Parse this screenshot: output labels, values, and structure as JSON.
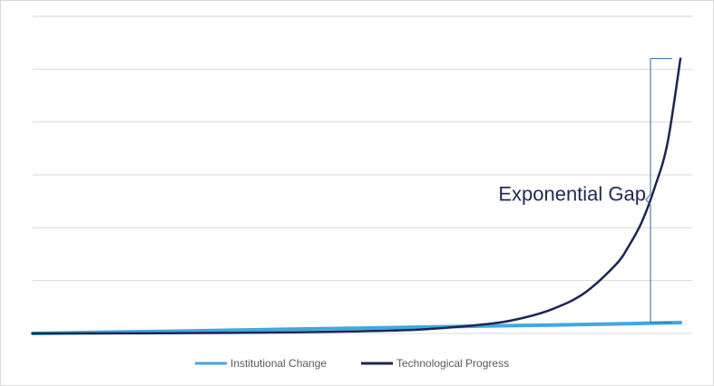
{
  "chart_data": {
    "type": "line",
    "title": "",
    "xlabel": "",
    "ylabel": "",
    "x": [
      0,
      10,
      20,
      30,
      40,
      50,
      60,
      70,
      75,
      80,
      85,
      90,
      92,
      94,
      96,
      98,
      100
    ],
    "ylim": [
      0,
      100
    ],
    "grid": true,
    "legend_position": "bottom",
    "series": [
      {
        "name": "Institutional Change",
        "color": "#3fa9e0",
        "values": [
          0.0,
          0.4,
          0.8,
          1.2,
          1.6,
          2.0,
          2.4,
          2.8,
          3.0,
          3.2,
          3.4,
          3.6,
          3.7,
          3.8,
          3.9,
          4.0,
          4.1
        ]
      },
      {
        "name": "Technological Progress",
        "color": "#1b2554",
        "values": [
          0.0,
          0.0,
          0.1,
          0.2,
          0.4,
          0.8,
          1.5,
          3.5,
          5.5,
          9.0,
          15.0,
          26.0,
          33.0,
          42.0,
          55.0,
          72.0,
          104.0
        ]
      }
    ],
    "annotations": [
      {
        "text": "Exponential Gap",
        "type": "brace",
        "x": 100,
        "y_range": [
          4.1,
          104.0
        ]
      }
    ]
  }
}
